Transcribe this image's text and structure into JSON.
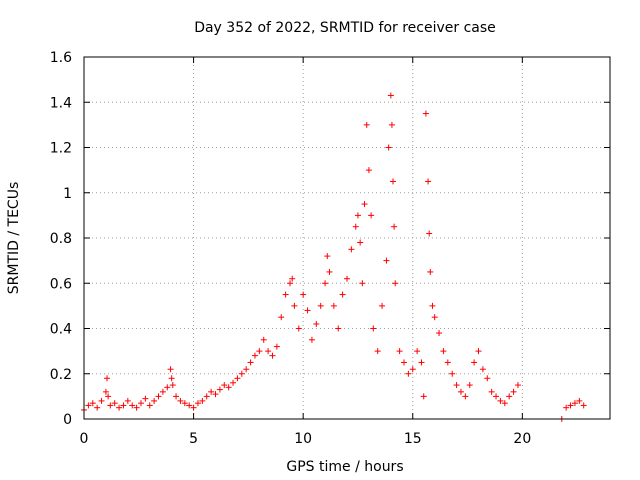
{
  "chart_data": {
    "type": "scatter",
    "title": "Day 352 of 2022, SRMTID for receiver case",
    "xlabel": "GPS time / hours",
    "ylabel": "SRMTID / TECUs",
    "xlim": [
      0,
      24
    ],
    "ylim": [
      0,
      1.6
    ],
    "x_ticks": [
      "0",
      "5",
      "10",
      "15",
      "20"
    ],
    "x_tick_values": [
      0,
      5,
      10,
      15,
      20
    ],
    "y_ticks": [
      "0",
      "0.2",
      "0.4",
      "0.6",
      "0.8",
      "1",
      "1.2",
      "1.4",
      "1.6"
    ],
    "y_tick_values": [
      0,
      0.2,
      0.4,
      0.6,
      0.8,
      1.0,
      1.2,
      1.4,
      1.6
    ],
    "grid": true,
    "marker": "+",
    "color": "#ff0000",
    "series": [
      {
        "name": "SRMTID",
        "x": [
          0.0,
          0.2,
          0.4,
          0.6,
          0.8,
          1.0,
          1.05,
          1.1,
          1.2,
          1.4,
          1.6,
          1.8,
          2.0,
          2.2,
          2.4,
          2.6,
          2.8,
          3.0,
          3.2,
          3.4,
          3.6,
          3.8,
          3.95,
          4.0,
          4.05,
          4.2,
          4.4,
          4.6,
          4.8,
          5.0,
          5.2,
          5.4,
          5.6,
          5.8,
          6.0,
          6.2,
          6.4,
          6.6,
          6.8,
          7.0,
          7.2,
          7.4,
          7.6,
          7.8,
          8.0,
          8.2,
          8.4,
          8.6,
          8.8,
          9.0,
          9.2,
          9.4,
          9.5,
          9.6,
          9.8,
          10.0,
          10.2,
          10.4,
          10.6,
          10.8,
          11.0,
          11.1,
          11.2,
          11.4,
          11.6,
          11.8,
          12.0,
          12.2,
          12.4,
          12.5,
          12.6,
          12.7,
          12.8,
          12.9,
          13.0,
          13.1,
          13.2,
          13.4,
          13.6,
          13.8,
          13.9,
          14.0,
          14.05,
          14.1,
          14.15,
          14.2,
          14.4,
          14.6,
          14.8,
          15.0,
          15.2,
          15.4,
          15.5,
          15.6,
          15.7,
          15.75,
          15.8,
          15.9,
          16.0,
          16.2,
          16.4,
          16.6,
          16.8,
          17.0,
          17.2,
          17.4,
          17.6,
          17.8,
          18.0,
          18.2,
          18.4,
          18.6,
          18.8,
          19.0,
          19.2,
          19.4,
          19.6,
          19.8,
          21.8,
          22.0,
          22.2,
          22.4,
          22.6,
          22.8
        ],
        "y": [
          0.04,
          0.06,
          0.07,
          0.05,
          0.08,
          0.12,
          0.18,
          0.1,
          0.06,
          0.07,
          0.05,
          0.06,
          0.08,
          0.06,
          0.05,
          0.07,
          0.09,
          0.06,
          0.08,
          0.1,
          0.12,
          0.14,
          0.22,
          0.18,
          0.15,
          0.1,
          0.08,
          0.07,
          0.06,
          0.05,
          0.07,
          0.08,
          0.1,
          0.12,
          0.11,
          0.13,
          0.15,
          0.14,
          0.16,
          0.18,
          0.2,
          0.22,
          0.25,
          0.28,
          0.3,
          0.35,
          0.3,
          0.28,
          0.32,
          0.45,
          0.55,
          0.6,
          0.62,
          0.5,
          0.4,
          0.55,
          0.48,
          0.35,
          0.42,
          0.5,
          0.6,
          0.72,
          0.65,
          0.5,
          0.4,
          0.55,
          0.62,
          0.75,
          0.85,
          0.9,
          0.78,
          0.6,
          0.95,
          1.3,
          1.1,
          0.9,
          0.4,
          0.3,
          0.5,
          0.7,
          1.2,
          1.43,
          1.3,
          1.05,
          0.85,
          0.6,
          0.3,
          0.25,
          0.2,
          0.22,
          0.3,
          0.25,
          0.1,
          1.35,
          1.05,
          0.82,
          0.65,
          0.5,
          0.45,
          0.38,
          0.3,
          0.25,
          0.2,
          0.15,
          0.12,
          0.1,
          0.15,
          0.25,
          0.3,
          0.22,
          0.18,
          0.12,
          0.1,
          0.08,
          0.07,
          0.1,
          0.12,
          0.15,
          0.0,
          0.05,
          0.06,
          0.07,
          0.08,
          0.06
        ]
      }
    ]
  }
}
